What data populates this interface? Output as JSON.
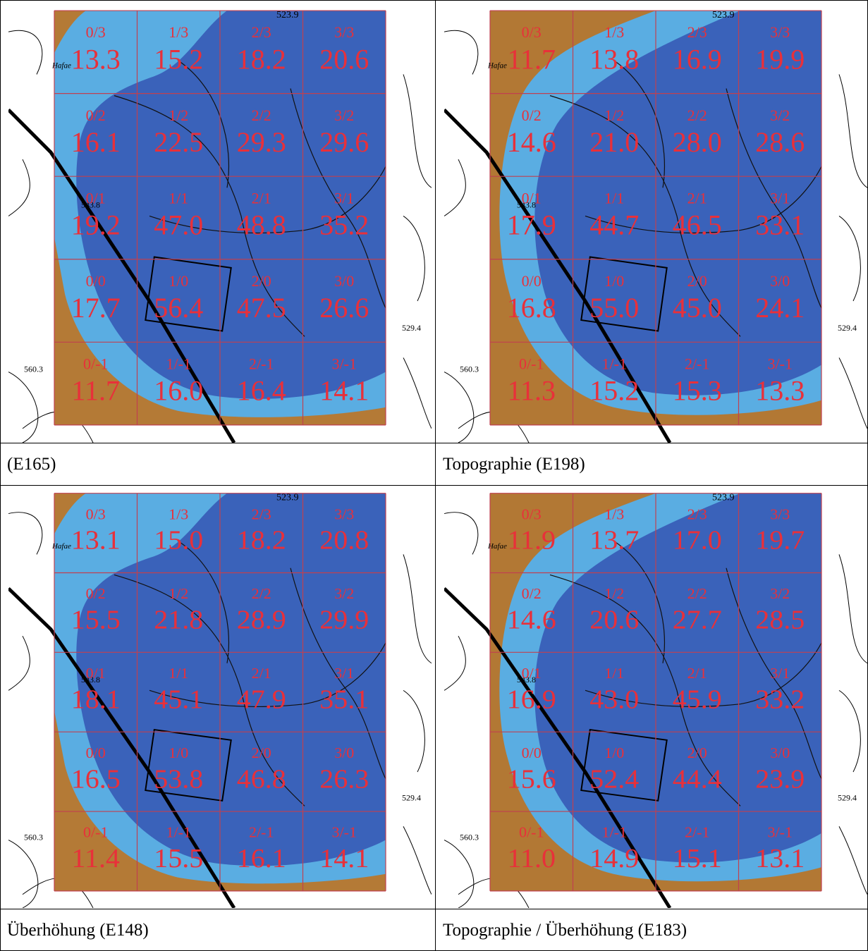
{
  "grid_labels": [
    [
      "0/3",
      "1/3",
      "2/3",
      "3/3"
    ],
    [
      "0/2",
      "1/2",
      "2/2",
      "3/2"
    ],
    [
      "0/1",
      "1/1",
      "2/1",
      "3/1"
    ],
    [
      "0/0",
      "1/0",
      "2/0",
      "3/0"
    ],
    [
      "0/-1",
      "1/-1",
      "2/-1",
      "3/-1"
    ]
  ],
  "map_labels": [
    "523.9",
    "Hafae",
    "543.8",
    "560.3",
    "529.4"
  ],
  "panels": [
    {
      "caption": "(E165)",
      "values": [
        [
          "13.3",
          "15.2",
          "18.2",
          "20.6"
        ],
        [
          "16.1",
          "22.5",
          "29.3",
          "29.6"
        ],
        [
          "19.2",
          "47.0",
          "48.8",
          "35.2"
        ],
        [
          "17.7",
          "56.4",
          "47.5",
          "26.6"
        ],
        [
          "11.7",
          "16.0",
          "16.4",
          "14.1"
        ]
      ]
    },
    {
      "caption": "Topographie (E198)",
      "values": [
        [
          "11.7",
          "13.8",
          "16.9",
          "19.9"
        ],
        [
          "14.6",
          "21.0",
          "28.0",
          "28.6"
        ],
        [
          "17.9",
          "44.7",
          "46.5",
          "33.1"
        ],
        [
          "16.8",
          "55.0",
          "45.0",
          "24.1"
        ],
        [
          "11.3",
          "15.2",
          "15.3",
          "13.3"
        ]
      ]
    },
    {
      "caption": "Überhöhung (E148)",
      "values": [
        [
          "13.1",
          "15.0",
          "18.2",
          "20.8"
        ],
        [
          "15.5",
          "21.8",
          "28.9",
          "29.9"
        ],
        [
          "18.1",
          "45.1",
          "47.9",
          "35.1"
        ],
        [
          "16.5",
          "53.8",
          "46.8",
          "26.3"
        ],
        [
          "11.4",
          "15.5",
          "16.1",
          "14.1"
        ]
      ]
    },
    {
      "caption": "Topographie / Überhöhung (E183)",
      "values": [
        [
          "11.9",
          "13.7",
          "17.0",
          "19.7"
        ],
        [
          "14.6",
          "20.6",
          "27.7",
          "28.5"
        ],
        [
          "16.9",
          "43.0",
          "45.9",
          "33.2"
        ],
        [
          "15.6",
          "52.4",
          "44.4",
          "23.9"
        ],
        [
          "11.0",
          "14.9",
          "15.1",
          "13.1"
        ]
      ]
    }
  ]
}
